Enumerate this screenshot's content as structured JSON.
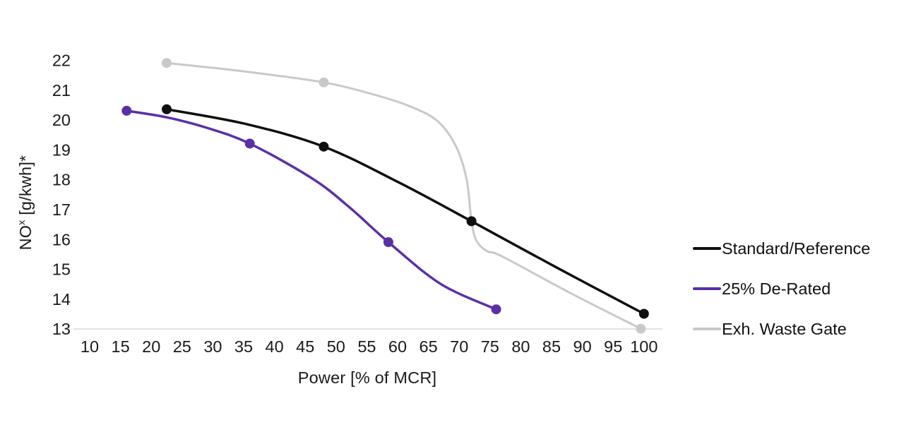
{
  "page": {
    "background": "#ffffff",
    "text_color": "#1a1a1a"
  },
  "chart_data": {
    "type": "line",
    "title": "",
    "xlabel": "Power [% of MCR]",
    "ylabel_prefix": "NO",
    "ylabel_sup": "x",
    "ylabel_suffix": " [g/kwh]*",
    "x_ticks": [
      10,
      15,
      20,
      25,
      30,
      35,
      40,
      45,
      50,
      55,
      60,
      65,
      70,
      75,
      80,
      85,
      90,
      95,
      100
    ],
    "y_ticks": [
      13,
      14,
      15,
      16,
      17,
      18,
      19,
      20,
      21,
      22
    ],
    "xlim": [
      10,
      100
    ],
    "ylim": [
      13,
      22
    ],
    "grid": false,
    "legend_position": "right",
    "axis_line_color": "#d9d9d9",
    "tick_color": "#1a1a1a",
    "series": [
      {
        "name": "Standard/Reference",
        "color": "#0f0f0f",
        "marker_points": [
          [
            22.5,
            20.35
          ],
          [
            48,
            19.1
          ],
          [
            72,
            16.6
          ],
          [
            100,
            13.5
          ]
        ],
        "path_points": [
          [
            22.5,
            20.35
          ],
          [
            35.5,
            19.85
          ],
          [
            48,
            19.1
          ],
          [
            60,
            17.92
          ],
          [
            72,
            16.6
          ],
          [
            86,
            15.03
          ],
          [
            100,
            13.5
          ]
        ]
      },
      {
        "name": "25% De-Rated",
        "color": "#5b2fa8",
        "marker_points": [
          [
            16,
            20.3
          ],
          [
            36,
            19.2
          ],
          [
            58.5,
            15.9
          ],
          [
            76,
            13.65
          ]
        ],
        "path_points": [
          [
            16,
            20.3
          ],
          [
            22.5,
            20.08
          ],
          [
            29,
            19.73
          ],
          [
            36,
            19.2
          ],
          [
            46,
            18.05
          ],
          [
            52,
            17.1
          ],
          [
            58.5,
            15.9
          ],
          [
            67,
            14.5
          ],
          [
            76,
            13.65
          ]
        ]
      },
      {
        "name": "Exh. Waste Gate",
        "color": "#c9c9c9",
        "marker_points": [
          [
            22.5,
            21.9
          ],
          [
            48,
            21.25
          ],
          [
            72,
            16.6
          ],
          [
            99.5,
            13.0
          ]
        ],
        "path_points": [
          [
            22.5,
            21.9
          ],
          [
            35,
            21.62
          ],
          [
            48,
            21.25
          ],
          [
            56,
            20.85
          ],
          [
            62,
            20.45
          ],
          [
            66.5,
            19.95
          ],
          [
            69.5,
            19.1
          ],
          [
            71.2,
            18.0
          ],
          [
            72,
            16.6
          ],
          [
            72.8,
            15.95
          ],
          [
            74.5,
            15.6
          ],
          [
            77,
            15.42
          ],
          [
            88,
            14.2
          ],
          [
            99.5,
            13.0
          ]
        ]
      }
    ]
  }
}
